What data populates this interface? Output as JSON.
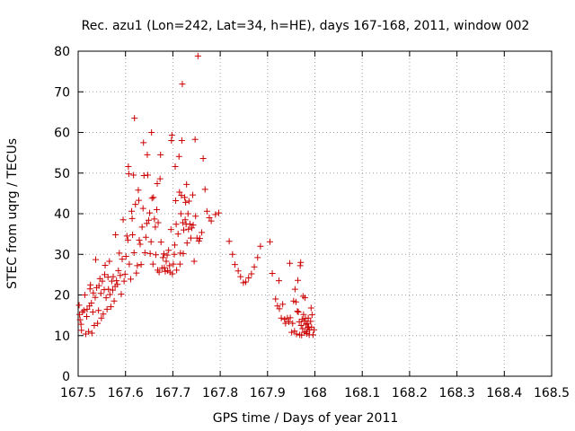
{
  "chart_data": {
    "type": "scatter",
    "title": "Rec. azu1 (Lon=242, Lat=34, h=HE), days 167-168, 2011, window 002",
    "xlabel": "GPS time / Days of year 2011",
    "ylabel": "STEC from uqrg / TECUs",
    "xlim": [
      167.5,
      168.5
    ],
    "ylim": [
      0,
      80
    ],
    "x_ticks": [
      167.5,
      167.6,
      167.7,
      167.8,
      167.9,
      168.0,
      168.1,
      168.2,
      168.3,
      168.4,
      168.5
    ],
    "x_tick_labels": [
      "167.5",
      "167.6",
      "167.7",
      "167.8",
      "167.9",
      "168",
      "168.1",
      "168.2",
      "168.3",
      "168.4",
      "168.5"
    ],
    "y_ticks": [
      0,
      10,
      20,
      30,
      40,
      50,
      60,
      70,
      80
    ],
    "y_tick_labels": [
      "0",
      "10",
      "20",
      "30",
      "40",
      "50",
      "60",
      "70",
      "80"
    ],
    "grid": true,
    "marker": "+",
    "color": "#cc0000",
    "points": [
      [
        167.502,
        17.5
      ],
      [
        167.503,
        15.2
      ],
      [
        167.504,
        13.9
      ],
      [
        167.506,
        12.8
      ],
      [
        167.507,
        11.3
      ],
      [
        167.509,
        15.8
      ],
      [
        167.512,
        16.2
      ],
      [
        167.514,
        20.0
      ],
      [
        167.516,
        10.4
      ],
      [
        167.518,
        14.7
      ],
      [
        167.519,
        16.5
      ],
      [
        167.522,
        11.0
      ],
      [
        167.524,
        17.3
      ],
      [
        167.525,
        21.5
      ],
      [
        167.526,
        22.5
      ],
      [
        167.528,
        18.0
      ],
      [
        167.529,
        10.6
      ],
      [
        167.531,
        15.8
      ],
      [
        167.532,
        20.5
      ],
      [
        167.534,
        12.5
      ],
      [
        167.536,
        19.4
      ],
      [
        167.537,
        28.7
      ],
      [
        167.539,
        21.8
      ],
      [
        167.541,
        13.0
      ],
      [
        167.543,
        16.2
      ],
      [
        167.544,
        22.3
      ],
      [
        167.546,
        24.0
      ],
      [
        167.548,
        20.4
      ],
      [
        167.549,
        14.3
      ],
      [
        167.551,
        23.4
      ],
      [
        167.553,
        15.3
      ],
      [
        167.555,
        21.3
      ],
      [
        167.556,
        25.0
      ],
      [
        167.557,
        27.3
      ],
      [
        167.559,
        19.3
      ],
      [
        167.561,
        16.5
      ],
      [
        167.563,
        24.4
      ],
      [
        167.564,
        21.4
      ],
      [
        167.566,
        28.3
      ],
      [
        167.567,
        20.1
      ],
      [
        167.569,
        17.1
      ],
      [
        167.571,
        23.4
      ],
      [
        167.573,
        21.2
      ],
      [
        167.574,
        24.5
      ],
      [
        167.576,
        18.5
      ],
      [
        167.578,
        22.1
      ],
      [
        167.579,
        34.8
      ],
      [
        167.581,
        23.5
      ],
      [
        167.583,
        22.6
      ],
      [
        167.585,
        26.0
      ],
      [
        167.587,
        30.3
      ],
      [
        167.589,
        24.8
      ],
      [
        167.591,
        20.2
      ],
      [
        167.593,
        28.8
      ],
      [
        167.595,
        38.5
      ],
      [
        167.597,
        23.4
      ],
      [
        167.599,
        25.1
      ],
      [
        167.601,
        29.5
      ],
      [
        167.603,
        34.5
      ],
      [
        167.605,
        33.5
      ],
      [
        167.606,
        51.6
      ],
      [
        167.607,
        49.8
      ],
      [
        167.608,
        27.6
      ],
      [
        167.611,
        23.9
      ],
      [
        167.613,
        40.6
      ],
      [
        167.614,
        38.8
      ],
      [
        167.615,
        34.8
      ],
      [
        167.617,
        49.5
      ],
      [
        167.618,
        30.4
      ],
      [
        167.619,
        63.5
      ],
      [
        167.621,
        42.3
      ],
      [
        167.623,
        25.4
      ],
      [
        167.625,
        27.2
      ],
      [
        167.627,
        45.8
      ],
      [
        167.628,
        43.3
      ],
      [
        167.629,
        33.5
      ],
      [
        167.631,
        32.5
      ],
      [
        167.633,
        27.5
      ],
      [
        167.635,
        36.7
      ],
      [
        167.637,
        41.3
      ],
      [
        167.638,
        57.5
      ],
      [
        167.639,
        49.4
      ],
      [
        167.641,
        30.4
      ],
      [
        167.643,
        34.2
      ],
      [
        167.645,
        37.6
      ],
      [
        167.646,
        54.5
      ],
      [
        167.647,
        49.5
      ],
      [
        167.649,
        38.4
      ],
      [
        167.651,
        40.2
      ],
      [
        167.652,
        30.2
      ],
      [
        167.654,
        33.1
      ],
      [
        167.655,
        60.0
      ],
      [
        167.656,
        43.8
      ],
      [
        167.658,
        27.6
      ],
      [
        167.659,
        44.0
      ],
      [
        167.661,
        38.7
      ],
      [
        167.663,
        36.7
      ],
      [
        167.664,
        29.9
      ],
      [
        167.666,
        41.0
      ],
      [
        167.667,
        47.4
      ],
      [
        167.668,
        26.1
      ],
      [
        167.669,
        37.8
      ],
      [
        167.671,
        25.6
      ],
      [
        167.673,
        48.6
      ],
      [
        167.674,
        54.5
      ],
      [
        167.675,
        33.0
      ],
      [
        167.677,
        26.6
      ],
      [
        167.679,
        29.2
      ],
      [
        167.681,
        30.1
      ],
      [
        167.682,
        26.7
      ],
      [
        167.684,
        25.8
      ],
      [
        167.686,
        28.3
      ],
      [
        167.688,
        29.8
      ],
      [
        167.689,
        26.0
      ],
      [
        167.691,
        31.0
      ],
      [
        167.693,
        27.2
      ],
      [
        167.694,
        25.6
      ],
      [
        167.696,
        36.1
      ],
      [
        167.697,
        58.0
      ],
      [
        167.698,
        59.3
      ],
      [
        167.699,
        25.2
      ],
      [
        167.701,
        27.6
      ],
      [
        167.703,
        30.0
      ],
      [
        167.704,
        32.3
      ],
      [
        167.705,
        51.6
      ],
      [
        167.706,
        43.2
      ],
      [
        167.707,
        37.4
      ],
      [
        167.708,
        26.1
      ],
      [
        167.711,
        35.0
      ],
      [
        167.713,
        54.1
      ],
      [
        167.714,
        45.3
      ],
      [
        167.715,
        27.6
      ],
      [
        167.716,
        30.3
      ],
      [
        167.717,
        40.0
      ],
      [
        167.718,
        44.5
      ],
      [
        167.719,
        58.0
      ],
      [
        167.72,
        71.9
      ],
      [
        167.721,
        37.8
      ],
      [
        167.722,
        30.2
      ],
      [
        167.723,
        36.0
      ],
      [
        167.725,
        44.0
      ],
      [
        167.726,
        38.5
      ],
      [
        167.727,
        42.8
      ],
      [
        167.728,
        37.4
      ],
      [
        167.729,
        47.2
      ],
      [
        167.73,
        32.8
      ],
      [
        167.732,
        40.0
      ],
      [
        167.733,
        36.2
      ],
      [
        167.734,
        43.1
      ],
      [
        167.736,
        37.5
      ],
      [
        167.738,
        34.0
      ],
      [
        167.74,
        36.5
      ],
      [
        167.742,
        44.6
      ],
      [
        167.743,
        37.2
      ],
      [
        167.745,
        28.3
      ],
      [
        167.747,
        58.3
      ],
      [
        167.748,
        39.4
      ],
      [
        167.751,
        34.0
      ],
      [
        167.753,
        78.8
      ],
      [
        167.755,
        33.3
      ],
      [
        167.757,
        33.9
      ],
      [
        167.761,
        35.4
      ],
      [
        167.764,
        53.6
      ],
      [
        167.768,
        46.0
      ],
      [
        167.772,
        40.6
      ],
      [
        167.777,
        39.0
      ],
      [
        167.781,
        38.2
      ],
      [
        167.79,
        39.8
      ],
      [
        167.797,
        40.2
      ],
      [
        167.819,
        33.2
      ],
      [
        167.826,
        30.0
      ],
      [
        167.831,
        27.5
      ],
      [
        167.838,
        25.9
      ],
      [
        167.843,
        24.5
      ],
      [
        167.849,
        23.0
      ],
      [
        167.854,
        23.2
      ],
      [
        167.86,
        24.2
      ],
      [
        167.866,
        25.2
      ],
      [
        167.872,
        26.9
      ],
      [
        167.879,
        29.2
      ],
      [
        167.885,
        32.0
      ],
      [
        167.905,
        33.1
      ],
      [
        167.91,
        25.3
      ],
      [
        167.917,
        19.0
      ],
      [
        167.921,
        17.3
      ],
      [
        167.924,
        23.5
      ],
      [
        167.925,
        16.6
      ],
      [
        167.929,
        14.3
      ],
      [
        167.932,
        17.7
      ],
      [
        167.936,
        14.0
      ],
      [
        167.938,
        13.0
      ],
      [
        167.942,
        14.3
      ],
      [
        167.945,
        13.4
      ],
      [
        167.947,
        27.8
      ],
      [
        167.948,
        14.4
      ],
      [
        167.951,
        10.8
      ],
      [
        167.953,
        13.0
      ],
      [
        167.955,
        18.5
      ],
      [
        167.957,
        11.1
      ],
      [
        167.958,
        21.4
      ],
      [
        167.96,
        18.3
      ],
      [
        167.961,
        10.4
      ],
      [
        167.963,
        16.0
      ],
      [
        167.964,
        23.6
      ],
      [
        167.965,
        15.8
      ],
      [
        167.967,
        13.4
      ],
      [
        167.968,
        10.2
      ],
      [
        167.969,
        27.2
      ],
      [
        167.97,
        28.0
      ],
      [
        167.971,
        12.5
      ],
      [
        167.972,
        10.1
      ],
      [
        167.973,
        14.0
      ],
      [
        167.974,
        11.7
      ],
      [
        167.975,
        19.7
      ],
      [
        167.976,
        15.2
      ],
      [
        167.977,
        13.6
      ],
      [
        167.978,
        10.8
      ],
      [
        167.979,
        19.3
      ],
      [
        167.98,
        14.2
      ],
      [
        167.981,
        12.8
      ],
      [
        167.982,
        11.0
      ],
      [
        167.983,
        10.5
      ],
      [
        167.984,
        13.0
      ],
      [
        167.985,
        12.0
      ],
      [
        167.986,
        14.3
      ],
      [
        167.987,
        12.1
      ],
      [
        167.988,
        10.2
      ],
      [
        167.989,
        11.4
      ],
      [
        167.991,
        13.5
      ],
      [
        167.992,
        16.8
      ],
      [
        167.993,
        12.1
      ],
      [
        167.994,
        15.1
      ],
      [
        167.996,
        10.2
      ],
      [
        167.998,
        11.4
      ]
    ]
  }
}
